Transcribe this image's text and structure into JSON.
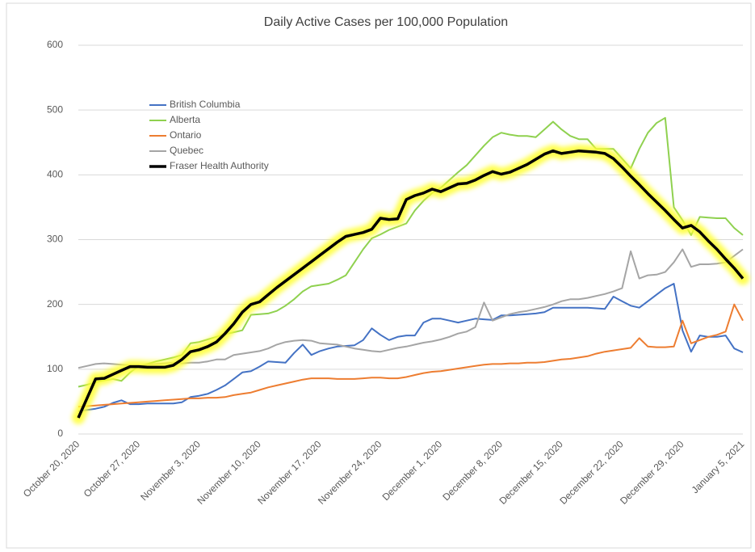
{
  "chart_data": {
    "type": "line",
    "title": "Daily Active Cases per 100,000 Population",
    "categories": [
      "October 20, 2020",
      null,
      null,
      null,
      null,
      null,
      null,
      "October 27, 2020",
      null,
      null,
      null,
      null,
      null,
      null,
      "November 3, 2020",
      null,
      null,
      null,
      null,
      null,
      null,
      "November 10, 2020",
      null,
      null,
      null,
      null,
      null,
      null,
      "November 17, 2020",
      null,
      null,
      null,
      null,
      null,
      null,
      "November 24, 2020",
      null,
      null,
      null,
      null,
      null,
      null,
      "December 1, 2020",
      null,
      null,
      null,
      null,
      null,
      null,
      "December 8, 2020",
      null,
      null,
      null,
      null,
      null,
      null,
      "December 15, 2020",
      null,
      null,
      null,
      null,
      null,
      null,
      "December 22, 2020",
      null,
      null,
      null,
      null,
      null,
      null,
      "December 29, 2020",
      null,
      null,
      null,
      null,
      null,
      null,
      "January 5, 2021"
    ],
    "ylim": [
      0,
      600
    ],
    "yticks": [
      0,
      100,
      200,
      300,
      400,
      500,
      600
    ],
    "grid": true,
    "legend": "upper left",
    "series": [
      {
        "name": "British Columbia",
        "color": "#4472c4",
        "values": [
          35,
          37,
          39,
          42,
          48,
          52,
          46,
          46,
          47,
          47,
          47,
          47,
          49,
          57,
          59,
          62,
          68,
          75,
          85,
          95,
          97,
          104,
          112,
          111,
          110,
          125,
          138,
          122,
          128,
          132,
          135,
          136,
          137,
          145,
          163,
          153,
          145,
          150,
          152,
          152,
          172,
          178,
          178,
          175,
          172,
          175,
          178,
          177,
          176,
          183,
          183,
          184,
          185,
          186,
          188,
          195,
          195,
          195,
          195,
          195,
          194,
          193,
          212,
          205,
          198,
          195,
          205,
          215,
          225,
          232,
          160,
          127,
          152,
          150,
          150,
          152,
          132,
          126
        ]
      },
      {
        "name": "Alberta",
        "color": "#8fd14f",
        "values": [
          73,
          76,
          80,
          83,
          85,
          82,
          95,
          105,
          108,
          112,
          115,
          118,
          122,
          140,
          142,
          146,
          150,
          154,
          157,
          160,
          184,
          185,
          186,
          190,
          198,
          208,
          220,
          228,
          230,
          232,
          238,
          245,
          265,
          285,
          302,
          308,
          315,
          320,
          325,
          345,
          360,
          372,
          380,
          392,
          404,
          415,
          430,
          445,
          458,
          465,
          462,
          460,
          460,
          458,
          470,
          482,
          470,
          460,
          455,
          455,
          440,
          440,
          440,
          425,
          410,
          440,
          465,
          480,
          488,
          350,
          330,
          307,
          335,
          334,
          333,
          333,
          318,
          307
        ]
      },
      {
        "name": "Ontario",
        "color": "#ed7d31",
        "values": [
          42,
          43,
          44,
          45,
          46,
          47,
          48,
          49,
          50,
          51,
          52,
          53,
          54,
          55,
          55,
          56,
          56,
          57,
          60,
          62,
          64,
          68,
          72,
          75,
          78,
          81,
          84,
          86,
          86,
          86,
          85,
          85,
          85,
          86,
          87,
          87,
          86,
          86,
          88,
          91,
          94,
          96,
          97,
          99,
          101,
          103,
          105,
          107,
          108,
          108,
          109,
          109,
          110,
          110,
          111,
          113,
          115,
          116,
          118,
          120,
          124,
          127,
          129,
          131,
          133,
          148,
          135,
          134,
          134,
          135,
          175,
          140,
          145,
          150,
          153,
          158,
          200,
          175
        ]
      },
      {
        "name": "Quebec",
        "color": "#a5a5a5",
        "values": [
          102,
          105,
          108,
          109,
          108,
          107,
          106,
          106,
          107,
          108,
          109,
          110,
          109,
          110,
          110,
          112,
          115,
          115,
          122,
          124,
          126,
          128,
          132,
          138,
          142,
          144,
          145,
          144,
          140,
          139,
          138,
          135,
          132,
          130,
          128,
          127,
          130,
          133,
          135,
          138,
          141,
          143,
          146,
          150,
          155,
          158,
          165,
          203,
          175,
          180,
          185,
          188,
          190,
          193,
          196,
          200,
          205,
          208,
          208,
          210,
          213,
          216,
          220,
          225,
          282,
          240,
          245,
          246,
          250,
          265,
          285,
          258,
          262,
          262,
          263,
          265,
          275,
          285
        ]
      },
      {
        "name": "Fraser Health Authority",
        "color": "#000000",
        "highlight_color": "#ffff33",
        "values": [
          25,
          55,
          85,
          86,
          92,
          98,
          104,
          104,
          103,
          103,
          103,
          106,
          115,
          127,
          130,
          135,
          142,
          155,
          170,
          188,
          200,
          204,
          215,
          226,
          236,
          246,
          256,
          266,
          276,
          286,
          296,
          305,
          308,
          311,
          316,
          333,
          331,
          332,
          362,
          368,
          372,
          378,
          374,
          380,
          386,
          387,
          392,
          399,
          405,
          401,
          404,
          410,
          416,
          424,
          432,
          437,
          433,
          435,
          437,
          436,
          435,
          433,
          425,
          412,
          398,
          385,
          371,
          358,
          345,
          331,
          318,
          322,
          312,
          298,
          285,
          270,
          256,
          240
        ]
      }
    ]
  }
}
